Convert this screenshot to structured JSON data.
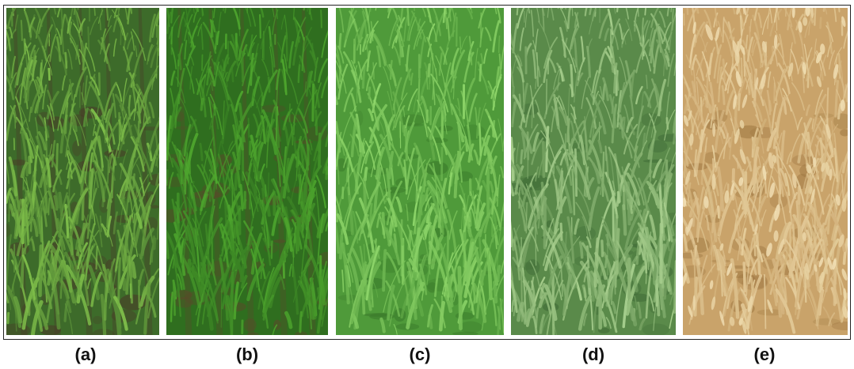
{
  "panels": [
    {
      "id": "a",
      "label": "(a)",
      "description_colors": {
        "base": "#3d6b2a",
        "leaf": "#7fbf4a",
        "soil": "#4a3a28"
      }
    },
    {
      "id": "b",
      "label": "(b)",
      "description_colors": {
        "base": "#2f6e1f",
        "leaf": "#4fa82e",
        "soil": "#5a4a2a"
      }
    },
    {
      "id": "c",
      "label": "(c)",
      "description_colors": {
        "base": "#4f9a3a",
        "leaf": "#8fd66a",
        "soil": "#3a7a2a"
      }
    },
    {
      "id": "d",
      "label": "(d)",
      "description_colors": {
        "base": "#5a8a4a",
        "leaf": "#a8cf8e",
        "soil": "#3f6a36"
      }
    },
    {
      "id": "e",
      "label": "(e)",
      "description_colors": {
        "base": "#c9a36a",
        "leaf": "#e6cf9e",
        "soil": "#a07a44"
      }
    }
  ]
}
